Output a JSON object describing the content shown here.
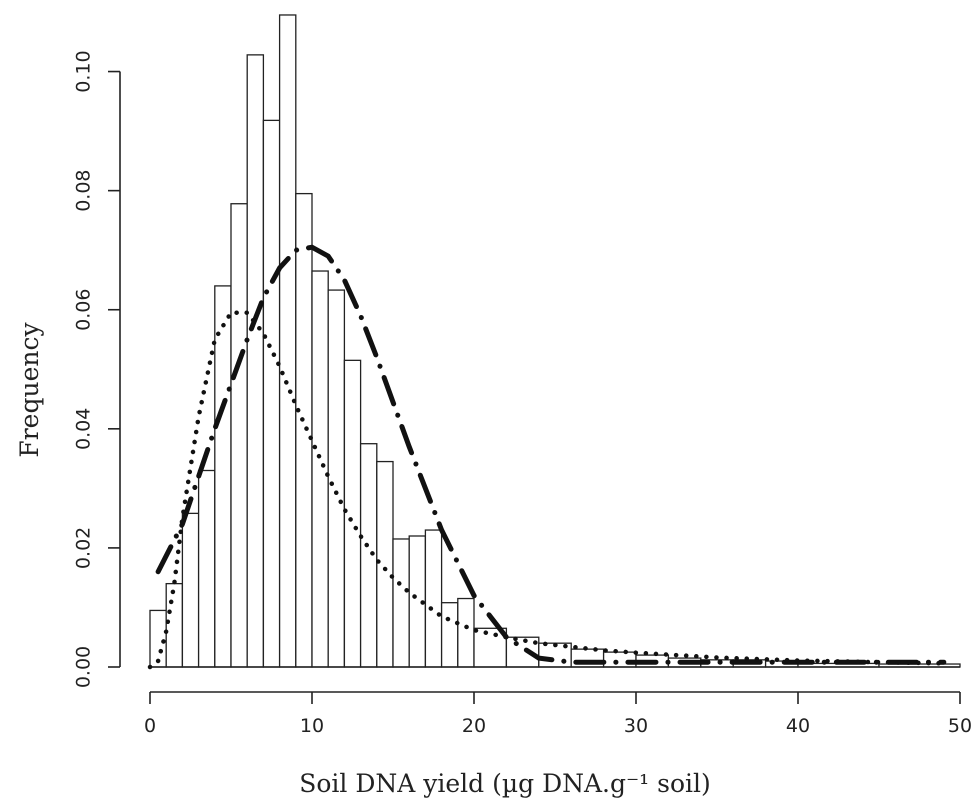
{
  "chart_data": {
    "type": "bar",
    "title": "",
    "xlabel": "Soil DNA yield (µg DNA.g⁻¹ soil)",
    "ylabel": "Frequency",
    "xlim": [
      0,
      50
    ],
    "ylim": [
      0,
      0.11
    ],
    "x_ticks": [
      0,
      10,
      20,
      30,
      40,
      50
    ],
    "y_ticks": [
      0.0,
      0.02,
      0.04,
      0.06,
      0.08,
      0.1
    ],
    "y_tick_labels": [
      "0.00",
      "0.02",
      "0.04",
      "0.06",
      "0.08",
      "0.10"
    ],
    "histogram": {
      "bin_edges": [
        0,
        1,
        2,
        3,
        4,
        5,
        6,
        7,
        8,
        9,
        10,
        11,
        12,
        13,
        14,
        15,
        16,
        17,
        18,
        19,
        20,
        22,
        24,
        26,
        28,
        30,
        32,
        34,
        36,
        38,
        40,
        45,
        50
      ],
      "frequencies": [
        0.0095,
        0.014,
        0.0258,
        0.033,
        0.064,
        0.0778,
        0.1028,
        0.0918,
        0.1095,
        0.0795,
        0.0665,
        0.0633,
        0.0515,
        0.0375,
        0.0345,
        0.0215,
        0.022,
        0.023,
        0.0108,
        0.0115,
        0.0065,
        0.005,
        0.004,
        0.003,
        0.0025,
        0.002,
        0.0015,
        0.0012,
        0.0012,
        0.001,
        0.0006,
        0.0005
      ]
    },
    "series": [
      {
        "style": "dash-dot",
        "x": [
          0.5,
          2,
          4,
          6,
          7,
          8,
          9,
          10,
          11,
          12,
          13,
          14,
          16,
          18,
          20,
          22,
          24,
          26,
          28,
          30,
          35,
          40,
          45,
          49
        ],
        "y": [
          0.016,
          0.024,
          0.04,
          0.055,
          0.062,
          0.067,
          0.07,
          0.0705,
          0.069,
          0.065,
          0.059,
          0.052,
          0.037,
          0.023,
          0.012,
          0.005,
          0.0015,
          0.0008,
          0.0008,
          0.0008,
          0.0008,
          0.0008,
          0.0008,
          0.0008
        ]
      },
      {
        "style": "dotted",
        "x": [
          0,
          0.5,
          1,
          1.5,
          2,
          3,
          4,
          5,
          6,
          7,
          8,
          9,
          10,
          11,
          12,
          13,
          14,
          15,
          16,
          18,
          20,
          22,
          24,
          26,
          28,
          30,
          35,
          40,
          45,
          49
        ],
        "y": [
          0.0,
          0.001,
          0.006,
          0.014,
          0.025,
          0.042,
          0.055,
          0.0595,
          0.0595,
          0.056,
          0.0505,
          0.044,
          0.038,
          0.032,
          0.0265,
          0.022,
          0.018,
          0.015,
          0.0125,
          0.0085,
          0.0062,
          0.005,
          0.004,
          0.0034,
          0.0028,
          0.0024,
          0.0016,
          0.0011,
          0.0008,
          0.0006
        ]
      }
    ]
  }
}
